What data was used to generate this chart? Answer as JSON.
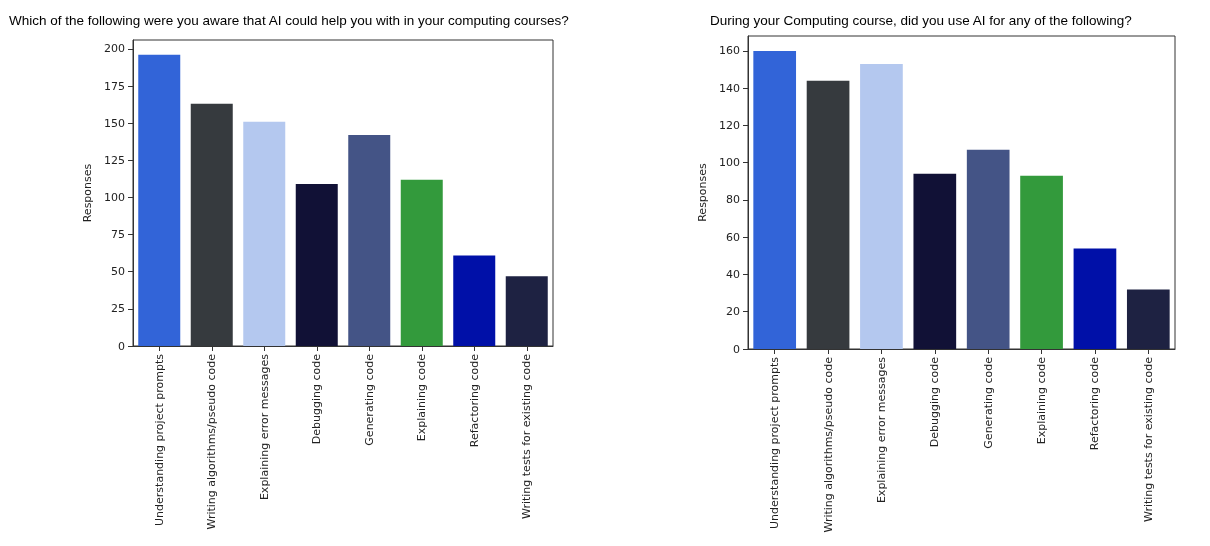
{
  "chart_data": [
    {
      "type": "bar",
      "title": "Which of the following were you aware that AI could help you with in your computing courses?",
      "ylabel": "Responses",
      "categories": [
        "Understanding project prompts",
        "Writing algorithms/pseudo code",
        "Explaining error messages",
        "Debugging code",
        "Generating code",
        "Explaining code",
        "Refactoring code",
        "Writing tests for existing code"
      ],
      "values": [
        196,
        163,
        151,
        109,
        142,
        112,
        61,
        47
      ],
      "colors": [
        "#3264d8",
        "#363a3e",
        "#b4c8ef",
        "#111136",
        "#445486",
        "#339a3c",
        "#0010a8",
        "#1e2242"
      ],
      "ylim": [
        0,
        206
      ],
      "yticks": [
        0,
        25,
        50,
        75,
        100,
        125,
        150,
        175,
        200
      ],
      "grid": false
    },
    {
      "type": "bar",
      "title": "During your Computing course, did you use AI for any of the following?",
      "ylabel": "Responses",
      "categories": [
        "Understanding project prompts",
        "Writing algorithms/pseudo code",
        "Explaining error messages",
        "Debugging code",
        "Generating code",
        "Explaining code",
        "Refactoring code",
        "Writing tests for existing code"
      ],
      "values": [
        160,
        144,
        153,
        94,
        107,
        93,
        54,
        32
      ],
      "colors": [
        "#3264d8",
        "#363a3e",
        "#b4c8ef",
        "#111136",
        "#445486",
        "#339a3c",
        "#0010a8",
        "#1e2242"
      ],
      "ylim": [
        0,
        168
      ],
      "yticks": [
        0,
        20,
        40,
        60,
        80,
        100,
        120,
        140,
        160
      ],
      "grid": false
    }
  ]
}
